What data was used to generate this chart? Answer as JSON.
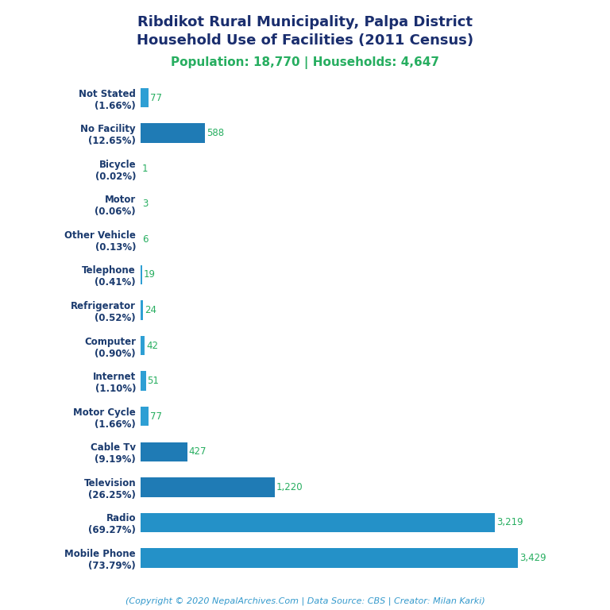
{
  "title_line1": "Ribdikot Rural Municipality, Palpa District",
  "title_line2": "Household Use of Facilities (2011 Census)",
  "subtitle": "Population: 18,770 | Households: 4,647",
  "footer": "(Copyright © 2020 NepalArchives.Com | Data Source: CBS | Creator: Milan Karki)",
  "categories": [
    "Not Stated\n(1.66%)",
    "No Facility\n(12.65%)",
    "Bicycle\n(0.02%)",
    "Motor\n(0.06%)",
    "Other Vehicle\n(0.13%)",
    "Telephone\n(0.41%)",
    "Refrigerator\n(0.52%)",
    "Computer\n(0.90%)",
    "Internet\n(1.10%)",
    "Motor Cycle\n(1.66%)",
    "Cable Tv\n(9.19%)",
    "Television\n(26.25%)",
    "Radio\n(69.27%)",
    "Mobile Phone\n(73.79%)"
  ],
  "values": [
    77,
    588,
    1,
    3,
    6,
    19,
    24,
    42,
    51,
    77,
    427,
    1220,
    3219,
    3429
  ],
  "value_labels": [
    "77",
    "588",
    "1",
    "3",
    "6",
    "19",
    "24",
    "42",
    "51",
    "77",
    "427",
    "1,220",
    "3,219",
    "3,429"
  ],
  "bar_colors": [
    "#2e9fd4",
    "#1f7bb5",
    "#2e9fd4",
    "#2e9fd4",
    "#2e9fd4",
    "#2e9fd4",
    "#2e9fd4",
    "#2e9fd4",
    "#2e9fd4",
    "#2e9fd4",
    "#1f7bb5",
    "#1f7bb5",
    "#2491c8",
    "#2491c8"
  ],
  "title_color": "#1a2e6e",
  "subtitle_color": "#27ae60",
  "value_color": "#27ae60",
  "footer_color": "#3399cc",
  "ylabel_color": "#1a3a6e",
  "background_color": "#ffffff",
  "title_fontsize": 13,
  "subtitle_fontsize": 11,
  "label_fontsize": 8.5,
  "value_fontsize": 8.5,
  "footer_fontsize": 8
}
